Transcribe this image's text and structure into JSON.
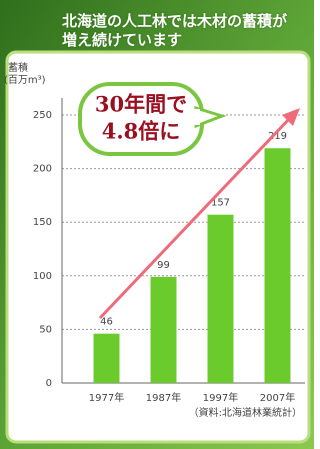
{
  "chart_data": {
    "type": "bar",
    "title": "北海道の人工林では木材の蓄積が増え続けています",
    "ylabel": "蓄積",
    "yunit": "(百万m³)",
    "categories": [
      "1977年",
      "1987年",
      "1997年",
      "2007年"
    ],
    "values": [
      46,
      99,
      157,
      219
    ],
    "color": "#6ccb2c",
    "ylim": [
      0,
      250
    ],
    "yticks": [
      0,
      50,
      100,
      150,
      200,
      250
    ],
    "grid": true,
    "annotation": [
      "30年間で",
      "4.8倍に"
    ],
    "source": "（資料:北海道林業統計）"
  }
}
